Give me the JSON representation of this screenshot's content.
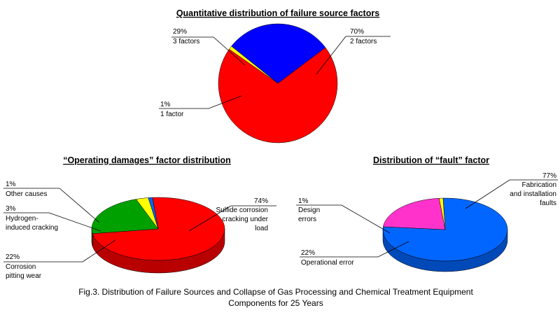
{
  "caption": {
    "line1": "Fig.3. Distribution of Failure Sources and Collapse of Gas Processing and Chemical Treatment Equipment",
    "line2": "Components for 25 Years"
  },
  "chart_data": [
    {
      "type": "pie",
      "title": "Quantitative distribution of failure source factors",
      "slices": [
        {
          "label": "2 factors",
          "value": 70,
          "value_text": "70%",
          "color": "#ff0000"
        },
        {
          "label": "1 factor",
          "value": 1,
          "value_text": "1%",
          "color": "#ffff00"
        },
        {
          "label": "3 factors",
          "value": 29,
          "value_text": "29%",
          "color": "#0000ff"
        }
      ]
    },
    {
      "type": "pie",
      "style": "3d",
      "title": "“Operating damages” factor distribution",
      "slices": [
        {
          "label": "Sulfide corrosion cracking under load",
          "label_lines": [
            "Sulfide corrosion",
            "cracking under",
            "load"
          ],
          "value": 74,
          "value_text": "74%",
          "color": "#ff0000"
        },
        {
          "label": "Corrosion pitting wear",
          "label_lines": [
            "Corrosion",
            "pitting wear"
          ],
          "value": 22,
          "value_text": "22%",
          "color": "#00a000"
        },
        {
          "label": "Hydrogen-induced cracking",
          "label_lines": [
            "Hydrogen-",
            "induced cracking"
          ],
          "value": 3,
          "value_text": "3%",
          "color": "#ffff00"
        },
        {
          "label": "Other causes",
          "label_lines": [
            "Other causes"
          ],
          "value": 1,
          "value_text": "1%",
          "color": "#0066ff"
        }
      ]
    },
    {
      "type": "pie",
      "style": "3d",
      "title": "Distribution of “fault” factor",
      "slices": [
        {
          "label": "Fabrication and installation faults",
          "label_lines": [
            "Fabrication",
            "and installation",
            "faults"
          ],
          "value": 77,
          "value_text": "77%",
          "color": "#0066ff"
        },
        {
          "label": "Operational error",
          "label_lines": [
            "Operational error"
          ],
          "value": 22,
          "value_text": "22%",
          "color": "#ff33cc"
        },
        {
          "label": "Design errors",
          "label_lines": [
            "Design",
            "errors"
          ],
          "value": 1,
          "value_text": "1%",
          "color": "#ffff00"
        }
      ]
    }
  ]
}
